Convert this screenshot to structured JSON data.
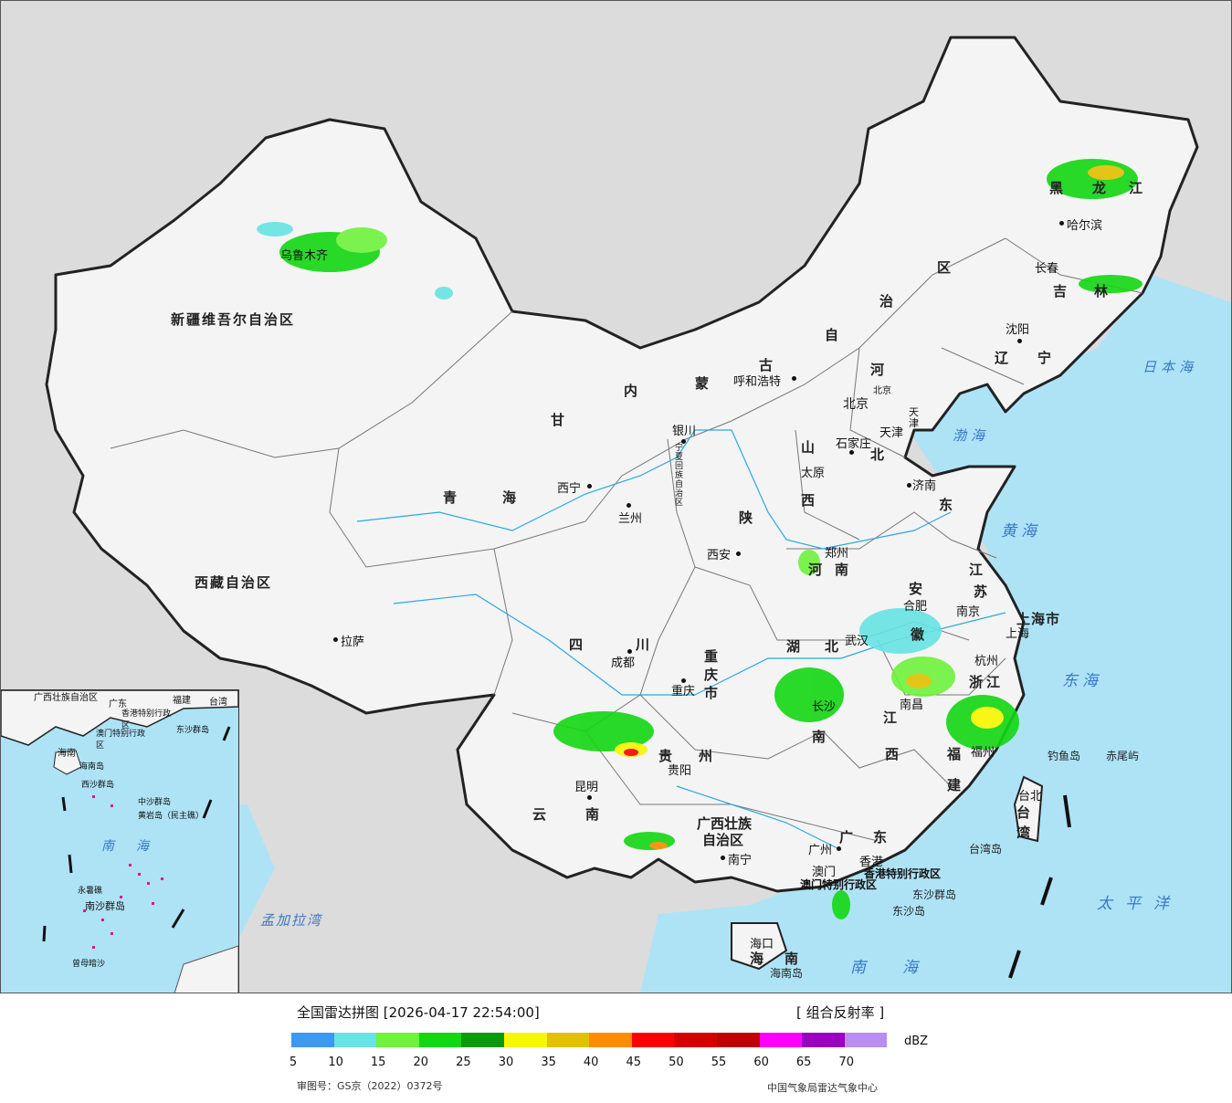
{
  "map": {
    "provinces": [
      "新疆维吾尔自治区",
      "西藏自治区",
      "青海",
      "甘",
      "内",
      "蒙",
      "古",
      "自",
      "治",
      "区",
      "黑",
      "龙",
      "江",
      "吉",
      "林",
      "辽",
      "宁",
      "河",
      "北",
      "山",
      "西",
      "东",
      "陕",
      "河南",
      "四",
      "川",
      "重庆市",
      "湖",
      "北",
      "南",
      "贵",
      "州",
      "云",
      "南",
      "广西壮族",
      "自治区",
      "广",
      "东",
      "江",
      "苏",
      "安",
      "徽",
      "浙江",
      "江",
      "西",
      "福",
      "建",
      "台",
      "湾",
      "海",
      "南",
      "宁夏回族自治区",
      "上海市",
      "天津",
      "北京",
      "香港特别行政区",
      "澳门特别行政区"
    ],
    "cities": [
      "乌鲁木齐",
      "拉萨",
      "西宁",
      "兰州",
      "银川",
      "呼和浩特",
      "北京",
      "天津",
      "石家庄",
      "太原",
      "济南",
      "郑州",
      "西安",
      "成都",
      "重庆",
      "贵阳",
      "昆明",
      "南宁",
      "广州",
      "澳门",
      "香港",
      "长沙",
      "武汉",
      "合肥",
      "南京",
      "上海",
      "杭州",
      "南昌",
      "福州",
      "台北",
      "哈尔滨",
      "长春",
      "沈阳",
      "海口"
    ],
    "seas": [
      "日本海",
      "渤海",
      "黄海",
      "东海",
      "太平洋",
      "南海",
      "孟加拉湾"
    ],
    "islands": [
      "钓鱼岛",
      "赤尾屿",
      "台湾岛",
      "东沙群岛",
      "东沙岛",
      "海南岛"
    ]
  },
  "inset": {
    "labels": [
      "广西壮族自治区",
      "广东",
      "福建",
      "台湾",
      "香港特别行政区",
      "澳门特别行政区",
      "东沙群岛",
      "海南",
      "海南岛",
      "西沙群岛",
      "中沙群岛",
      "黄岩岛（民主礁）",
      "南",
      "海",
      "永暑礁",
      "南沙群岛",
      "曾母暗沙"
    ]
  },
  "legend": {
    "title": "全国雷达拼图 [2026-04-17 22:54:00]",
    "product": "[ 组合反射率 ]",
    "unit": "dBZ",
    "ticks": [
      "5",
      "10",
      "15",
      "20",
      "25",
      "30",
      "35",
      "40",
      "45",
      "50",
      "55",
      "60",
      "65",
      "70"
    ],
    "colors": [
      "#3d99f0",
      "#68e3e3",
      "#6ef23b",
      "#13d713",
      "#0a9a0a",
      "#f7f700",
      "#e3c000",
      "#ff8c00",
      "#ff0000",
      "#d40000",
      "#c00000",
      "#ff00ff",
      "#9a00bf",
      "#b88ef0"
    ],
    "approval": "审图号：GS京（2022）0372号",
    "credit": "中国气象局雷达气象中心"
  }
}
